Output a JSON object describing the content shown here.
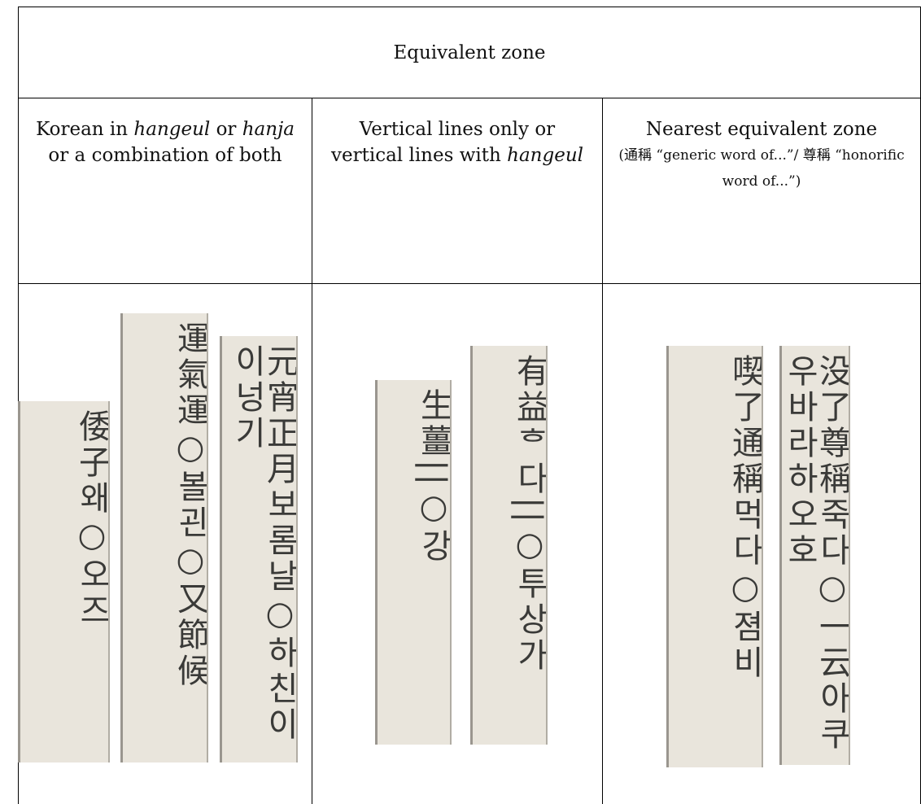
{
  "table": {
    "title": "Equivalent zone",
    "columns": [
      {
        "parts": [
          {
            "text": "Korean in ",
            "italic": false
          },
          {
            "text": "hangeul",
            "italic": true
          },
          {
            "text": " or ",
            "italic": false
          },
          {
            "text": "hanja",
            "italic": true
          },
          {
            "text": " or a combination of both",
            "italic": false
          }
        ]
      },
      {
        "parts": [
          {
            "text": "Vertical lines only or vertical lines with ",
            "italic": false
          },
          {
            "text": "hangeul",
            "italic": true
          }
        ]
      },
      {
        "parts": [
          {
            "text": "Nearest equivalent zone",
            "italic": false
          }
        ],
        "note": "(通稱 “generic word of...”/ 尊稱 “honorific word of...”)"
      }
    ],
    "strips": [
      [
        "倭子왜○오즈",
        "運氣運○볼괸○又節候",
        "元宵正月보롬날○하친이이넝기"
      ],
      [
        "生薑||○강",
        "有益ᄒ다||○투상가"
      ],
      [
        "喫了通稱먹다○졈비",
        "没了尊稱죽다○一云아쿠우바라하오호"
      ]
    ]
  }
}
